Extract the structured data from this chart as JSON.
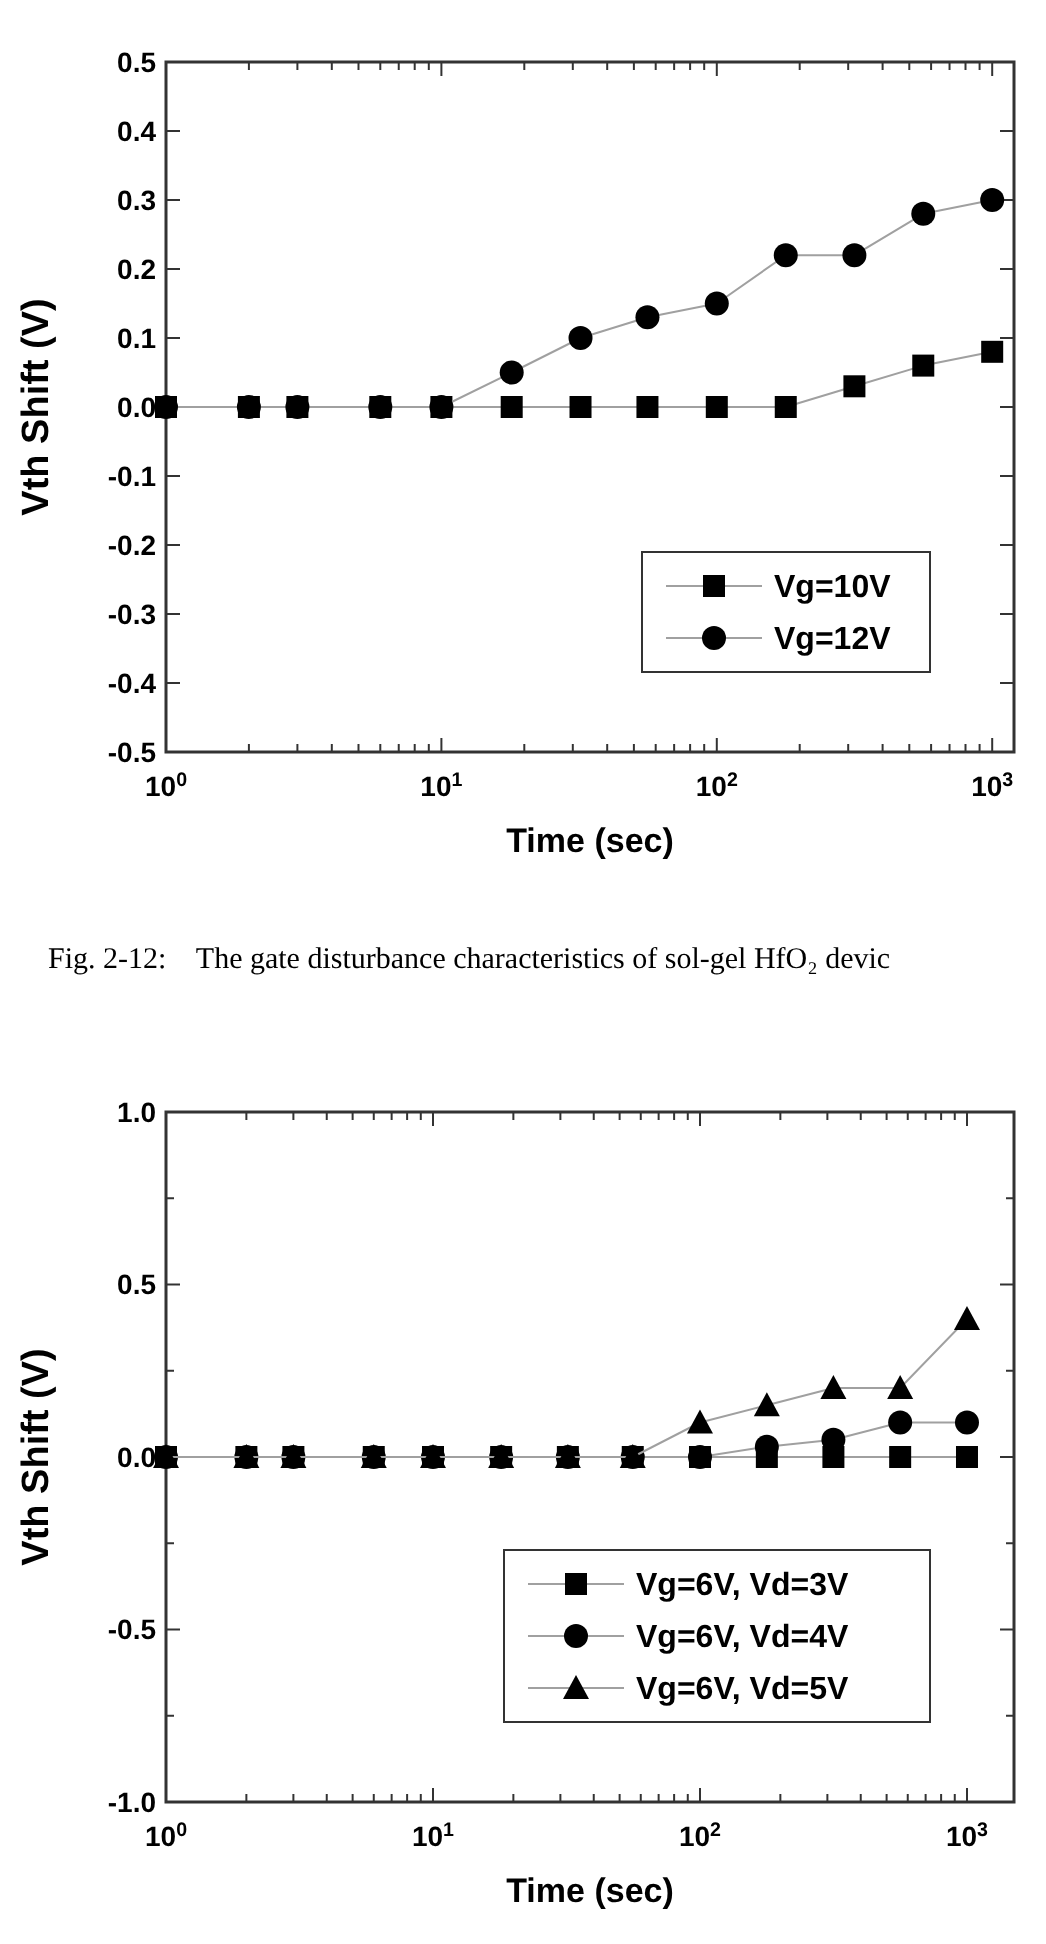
{
  "chart_data": [
    {
      "type": "line",
      "xlabel": "Time (sec)",
      "ylabel": "Vth Shift (V)",
      "log": "x",
      "x": [
        1,
        2,
        3,
        6,
        10,
        18,
        32,
        56,
        100,
        178,
        316,
        562,
        1000
      ],
      "series": [
        {
          "name": "Vg=10V",
          "color": "#000000",
          "marker": "square",
          "values": [
            0,
            0,
            0,
            0,
            0,
            0,
            0,
            0,
            0,
            0,
            0.03,
            0.06,
            0.08
          ]
        },
        {
          "name": "Vg=12V",
          "color": "#000000",
          "marker": "circle",
          "values": [
            0,
            0,
            0,
            0,
            0,
            0.05,
            0.1,
            0.13,
            0.15,
            0.22,
            0.22,
            0.28,
            0.3
          ]
        }
      ],
      "xlim": [
        1,
        1200
      ],
      "xticks": [
        {
          "value": 1,
          "label": "10$^{0}$"
        },
        {
          "value": 2,
          "label": null
        },
        {
          "value": 3,
          "label": null
        },
        {
          "value": 4,
          "label": null
        },
        {
          "value": 5,
          "label": null
        },
        {
          "value": 6,
          "label": null
        },
        {
          "value": 7,
          "label": null
        },
        {
          "value": 8,
          "label": null
        },
        {
          "value": 9,
          "label": null
        },
        {
          "value": 10,
          "label": "10$^{1}$"
        },
        {
          "value": 20,
          "label": null
        },
        {
          "value": 30,
          "label": null
        },
        {
          "value": 40,
          "label": null
        },
        {
          "value": 50,
          "label": null
        },
        {
          "value": 60,
          "label": null
        },
        {
          "value": 70,
          "label": null
        },
        {
          "value": 80,
          "label": null
        },
        {
          "value": 90,
          "label": null
        },
        {
          "value": 100,
          "label": "10$^{2}$"
        },
        {
          "value": 200,
          "label": null
        },
        {
          "value": 300,
          "label": null
        },
        {
          "value": 400,
          "label": null
        },
        {
          "value": 500,
          "label": null
        },
        {
          "value": 600,
          "label": null
        },
        {
          "value": 700,
          "label": null
        },
        {
          "value": 800,
          "label": null
        },
        {
          "value": 900,
          "label": null
        },
        {
          "value": 1000,
          "label": "10$^{3}$"
        }
      ],
      "ylim": [
        -0.5,
        0.5
      ],
      "yticks": [
        -0.5,
        -0.4,
        -0.3,
        -0.2,
        -0.1,
        {
          "value": 0,
          "label": "0.0"
        },
        0.1,
        0.2,
        0.3,
        0.4,
        0.5
      ],
      "legend": "bottom right",
      "line_style": "solid",
      "annotations": [
        "Fig. 2-12:    The gate disturbance characteristics of sol-gel HfO₂ devic"
      ]
    },
    {
      "type": "line",
      "xlabel": "Time (sec)",
      "ylabel": "Vth Shift (V)",
      "log": "x",
      "x": [
        1,
        2,
        3,
        6,
        10,
        18,
        32,
        56,
        100,
        178,
        316,
        562,
        1000
      ],
      "series": [
        {
          "name": "Vg=6V, Vd=3V",
          "color": "#000000",
          "marker": "square",
          "values": [
            0,
            0,
            0,
            0,
            0,
            0,
            0,
            0,
            0,
            0,
            0,
            0,
            0
          ]
        },
        {
          "name": "Vg=6V, Vd=4V",
          "color": "#000000",
          "marker": "circle",
          "values": [
            0,
            0,
            0,
            0,
            0,
            0,
            0,
            0,
            0,
            0.03,
            0.05,
            0.1,
            0.1
          ]
        },
        {
          "name": "Vg=6V, Vd=5V",
          "color": "#000000",
          "marker": "triangle",
          "values": [
            0,
            0,
            0,
            0,
            0,
            0,
            0,
            0,
            0.1,
            0.15,
            0.2,
            0.2,
            0.4
          ]
        }
      ],
      "xlim": [
        1,
        1500
      ],
      "xticks": [
        {
          "value": 1,
          "label": "10$^{0}$"
        },
        {
          "value": 2,
          "label": null
        },
        {
          "value": 3,
          "label": null
        },
        {
          "value": 4,
          "label": null
        },
        {
          "value": 5,
          "label": null
        },
        {
          "value": 6,
          "label": null
        },
        {
          "value": 7,
          "label": null
        },
        {
          "value": 8,
          "label": null
        },
        {
          "value": 9,
          "label": null
        },
        {
          "value": 10,
          "label": "10$^{1}$"
        },
        {
          "value": 20,
          "label": null
        },
        {
          "value": 30,
          "label": null
        },
        {
          "value": 40,
          "label": null
        },
        {
          "value": 50,
          "label": null
        },
        {
          "value": 60,
          "label": null
        },
        {
          "value": 70,
          "label": null
        },
        {
          "value": 80,
          "label": null
        },
        {
          "value": 90,
          "label": null
        },
        {
          "value": 100,
          "label": "10$^{2}$"
        },
        {
          "value": 200,
          "label": null
        },
        {
          "value": 300,
          "label": null
        },
        {
          "value": 400,
          "label": null
        },
        {
          "value": 500,
          "label": null
        },
        {
          "value": 600,
          "label": null
        },
        {
          "value": 700,
          "label": null
        },
        {
          "value": 800,
          "label": null
        },
        {
          "value": 900,
          "label": null
        },
        {
          "value": 1000,
          "label": "10$^{3}$"
        }
      ],
      "ylim": [
        -1,
        1
      ],
      "yticks": [
        {
          "value": -1,
          "label": "-1.0"
        },
        {
          "value": -0.75,
          "label": null
        },
        {
          "value": -0.5,
          "label": "-0.5"
        },
        {
          "value": -0.25,
          "label": null
        },
        {
          "value": 0,
          "label": "0.0"
        },
        {
          "value": 0.25,
          "label": null
        },
        {
          "value": 0.5,
          "label": "0.5"
        },
        {
          "value": 0.75,
          "label": null
        },
        {
          "value": 1,
          "label": "1.0"
        }
      ],
      "legend": "bottom right",
      "line_style": "solid"
    }
  ]
}
